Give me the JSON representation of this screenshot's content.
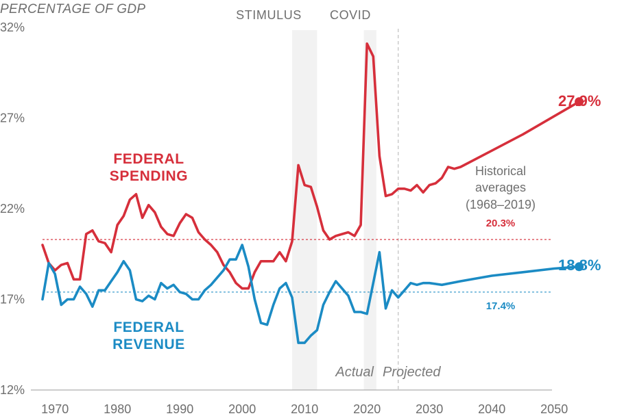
{
  "chart_data": {
    "type": "line",
    "ylabel": "PERCENTAGE OF GDP",
    "ylim": [
      12,
      32
    ],
    "xlim": [
      1968,
      2054
    ],
    "y_ticks": [
      "32%",
      "27%",
      "22%",
      "17%",
      "12%"
    ],
    "y_tick_values": [
      32,
      27,
      22,
      17,
      12
    ],
    "x_ticks": [
      "1970",
      "1980",
      "1990",
      "2000",
      "2010",
      "2020",
      "2030",
      "2040",
      "2050"
    ],
    "x_tick_values": [
      1970,
      1980,
      1990,
      2000,
      2010,
      2020,
      2030,
      2040,
      2050
    ],
    "colors": {
      "spending": "#d62f3b",
      "revenue": "#1b8bc4",
      "band": "#f2f2f2",
      "divider": "#c8c8c8"
    },
    "shaded_periods": [
      {
        "label": "STIMULUS",
        "start": 2008,
        "end": 2012
      },
      {
        "label": "COVID",
        "start": 2019.5,
        "end": 2021.5
      }
    ],
    "divider_year": 2025,
    "period_labels": {
      "actual": "Actual",
      "projected": "Projected"
    },
    "historical_note": [
      "Historical",
      "averages",
      "(1968–2019)"
    ],
    "series": [
      {
        "name": "FEDERAL SPENDING",
        "label_lines": [
          "FEDERAL",
          "SPENDING"
        ],
        "color": "#d62f3b",
        "end_label": "27.9%",
        "average": 20.3,
        "average_label": "20.3%",
        "points": [
          [
            1968,
            20.0
          ],
          [
            1969,
            19.0
          ],
          [
            1970,
            18.6
          ],
          [
            1971,
            18.9
          ],
          [
            1972,
            19.0
          ],
          [
            1973,
            18.1
          ],
          [
            1974,
            18.1
          ],
          [
            1975,
            20.6
          ],
          [
            1976,
            20.8
          ],
          [
            1977,
            20.2
          ],
          [
            1978,
            20.1
          ],
          [
            1979,
            19.6
          ],
          [
            1980,
            21.1
          ],
          [
            1981,
            21.6
          ],
          [
            1982,
            22.5
          ],
          [
            1983,
            22.8
          ],
          [
            1984,
            21.5
          ],
          [
            1985,
            22.2
          ],
          [
            1986,
            21.8
          ],
          [
            1987,
            21.0
          ],
          [
            1988,
            20.6
          ],
          [
            1989,
            20.5
          ],
          [
            1990,
            21.2
          ],
          [
            1991,
            21.7
          ],
          [
            1992,
            21.5
          ],
          [
            1993,
            20.7
          ],
          [
            1994,
            20.3
          ],
          [
            1995,
            20.0
          ],
          [
            1996,
            19.6
          ],
          [
            1997,
            18.9
          ],
          [
            1998,
            18.5
          ],
          [
            1999,
            17.9
          ],
          [
            2000,
            17.6
          ],
          [
            2001,
            17.6
          ],
          [
            2002,
            18.5
          ],
          [
            2003,
            19.1
          ],
          [
            2004,
            19.1
          ],
          [
            2005,
            19.1
          ],
          [
            2006,
            19.6
          ],
          [
            2007,
            19.1
          ],
          [
            2008,
            20.2
          ],
          [
            2009,
            24.4
          ],
          [
            2010,
            23.3
          ],
          [
            2011,
            23.2
          ],
          [
            2012,
            22.1
          ],
          [
            2013,
            20.8
          ],
          [
            2014,
            20.3
          ],
          [
            2015,
            20.5
          ],
          [
            2016,
            20.6
          ],
          [
            2017,
            20.7
          ],
          [
            2018,
            20.5
          ],
          [
            2019,
            21.1
          ],
          [
            2020,
            31.1
          ],
          [
            2021,
            30.4
          ],
          [
            2022,
            24.9
          ],
          [
            2023,
            22.7
          ],
          [
            2024,
            22.8
          ],
          [
            2025,
            23.1
          ],
          [
            2026,
            23.1
          ],
          [
            2027,
            23.0
          ],
          [
            2028,
            23.3
          ],
          [
            2029,
            22.9
          ],
          [
            2030,
            23.3
          ],
          [
            2031,
            23.4
          ],
          [
            2032,
            23.7
          ],
          [
            2033,
            24.3
          ],
          [
            2034,
            24.2
          ],
          [
            2035,
            24.3
          ],
          [
            2040,
            25.2
          ],
          [
            2045,
            26.1
          ],
          [
            2050,
            27.1
          ],
          [
            2054,
            27.9
          ]
        ]
      },
      {
        "name": "FEDERAL REVENUE",
        "label_lines": [
          "FEDERAL",
          "REVENUE"
        ],
        "color": "#1b8bc4",
        "end_label": "18.8%",
        "average": 17.4,
        "average_label": "17.4%",
        "points": [
          [
            1968,
            17.0
          ],
          [
            1969,
            19.0
          ],
          [
            1970,
            18.4
          ],
          [
            1971,
            16.7
          ],
          [
            1972,
            17.0
          ],
          [
            1973,
            17.0
          ],
          [
            1974,
            17.7
          ],
          [
            1975,
            17.3
          ],
          [
            1976,
            16.6
          ],
          [
            1977,
            17.5
          ],
          [
            1978,
            17.5
          ],
          [
            1979,
            18.0
          ],
          [
            1980,
            18.5
          ],
          [
            1981,
            19.1
          ],
          [
            1982,
            18.6
          ],
          [
            1983,
            17.0
          ],
          [
            1984,
            16.9
          ],
          [
            1985,
            17.2
          ],
          [
            1986,
            17.0
          ],
          [
            1987,
            17.9
          ],
          [
            1988,
            17.6
          ],
          [
            1989,
            17.8
          ],
          [
            1990,
            17.4
          ],
          [
            1991,
            17.3
          ],
          [
            1992,
            17.0
          ],
          [
            1993,
            17.0
          ],
          [
            1994,
            17.5
          ],
          [
            1995,
            17.8
          ],
          [
            1996,
            18.2
          ],
          [
            1997,
            18.6
          ],
          [
            1998,
            19.2
          ],
          [
            1999,
            19.2
          ],
          [
            2000,
            20.0
          ],
          [
            2001,
            18.8
          ],
          [
            2002,
            17.0
          ],
          [
            2003,
            15.7
          ],
          [
            2004,
            15.6
          ],
          [
            2005,
            16.7
          ],
          [
            2006,
            17.6
          ],
          [
            2007,
            17.9
          ],
          [
            2008,
            17.1
          ],
          [
            2009,
            14.6
          ],
          [
            2010,
            14.6
          ],
          [
            2011,
            15.0
          ],
          [
            2012,
            15.3
          ],
          [
            2013,
            16.7
          ],
          [
            2014,
            17.4
          ],
          [
            2015,
            18.0
          ],
          [
            2016,
            17.6
          ],
          [
            2017,
            17.2
          ],
          [
            2018,
            16.3
          ],
          [
            2019,
            16.3
          ],
          [
            2020,
            16.2
          ],
          [
            2021,
            17.9
          ],
          [
            2022,
            19.6
          ],
          [
            2023,
            16.5
          ],
          [
            2024,
            17.5
          ],
          [
            2025,
            17.1
          ],
          [
            2026,
            17.5
          ],
          [
            2027,
            17.9
          ],
          [
            2028,
            17.8
          ],
          [
            2029,
            17.9
          ],
          [
            2030,
            17.9
          ],
          [
            2032,
            17.8
          ],
          [
            2035,
            18.0
          ],
          [
            2040,
            18.3
          ],
          [
            2045,
            18.5
          ],
          [
            2050,
            18.7
          ],
          [
            2054,
            18.8
          ]
        ]
      }
    ]
  }
}
